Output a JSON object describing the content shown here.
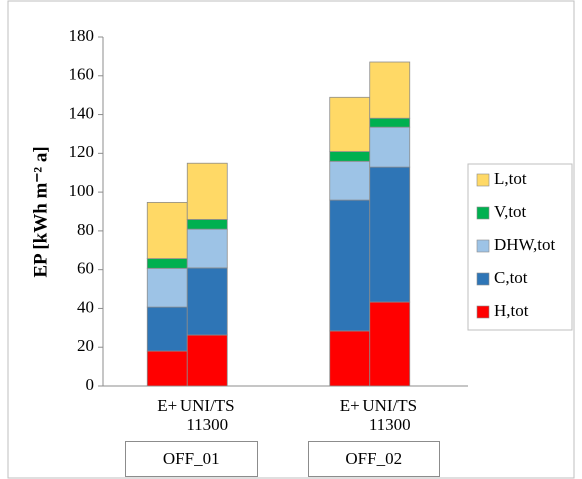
{
  "chart_data": {
    "type": "stacked_bar",
    "y_label": "EP [kWh m⁻² a]",
    "categories": [
      "E+",
      "UNI/TS 11300",
      "E+",
      "UNI/TS 11300"
    ],
    "groups": [
      "OFF_01",
      "OFF_02"
    ],
    "series": [
      {
        "name": "H,tot",
        "color": "#ff0000",
        "values": [
          18,
          26.3,
          28.4,
          43.3
        ]
      },
      {
        "name": "C,tot",
        "color": "#2e75b6",
        "values": [
          22.7,
          34.6,
          67.5,
          69.6
        ]
      },
      {
        "name": "DHW,tot",
        "color": "#9dc3e6",
        "values": [
          20,
          20,
          20,
          20.6
        ]
      },
      {
        "name": "V,tot",
        "color": "#00b050",
        "values": [
          5,
          5,
          5,
          4.6
        ]
      },
      {
        "name": "L,tot",
        "color": "#ffd966",
        "values": [
          29,
          29,
          28,
          29
        ]
      }
    ],
    "ylim": [
      0,
      180
    ],
    "yticks": [
      0,
      20,
      40,
      60,
      80,
      100,
      120,
      140,
      160,
      180
    ],
    "legend": "right",
    "grid": false
  }
}
